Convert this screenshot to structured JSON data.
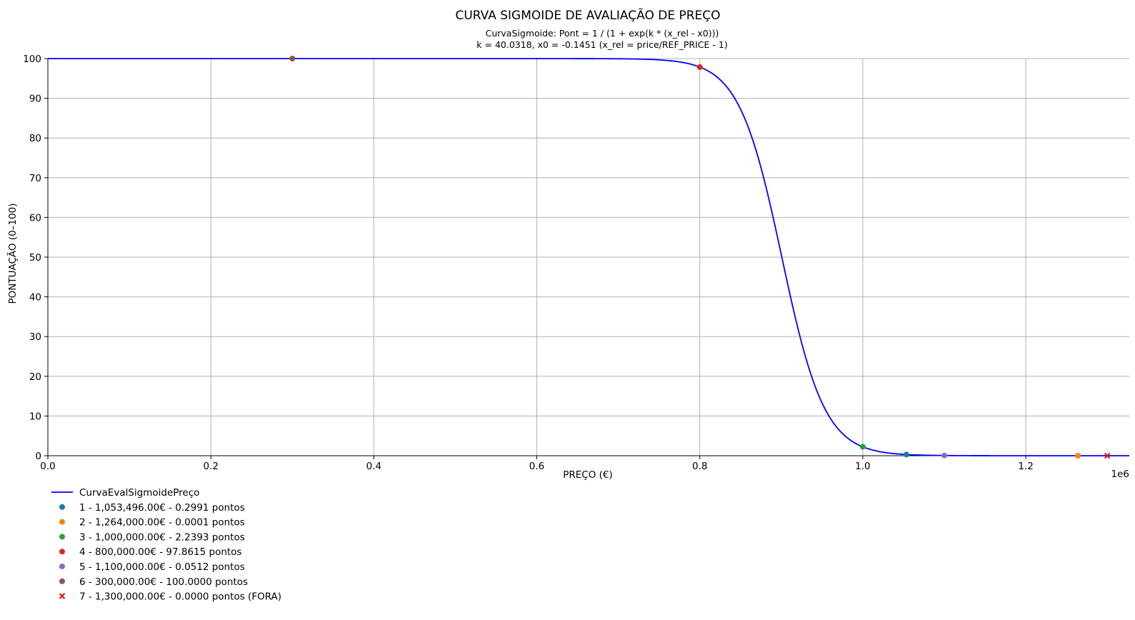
{
  "chart_data": {
    "type": "line",
    "title": "CURVA SIGMOIDE DE AVALIAÇÃO DE PREÇO",
    "subtitle_line1": "CurvaSigmoide: Pont = 1 / (1 + exp(k * (x_rel - x0)))",
    "subtitle_line2": "k = 40.0318, x0 = -0.1451 (x_rel = price/REF_PRICE - 1)",
    "xlabel": "PREÇO (€)",
    "ylabel": "PONTUAÇÃO (0–100)",
    "x_offset_label": "1e6",
    "xlim": [
      0,
      1327000
    ],
    "ylim": [
      0,
      100
    ],
    "x_ticks": [
      0,
      200000,
      400000,
      600000,
      800000,
      1000000,
      1200000
    ],
    "x_tick_labels": [
      "0.0",
      "0.2",
      "0.4",
      "0.6",
      "0.8",
      "1.0",
      "1.2"
    ],
    "y_ticks": [
      0,
      10,
      20,
      30,
      40,
      50,
      60,
      70,
      80,
      90,
      100
    ],
    "y_tick_labels": [
      "0",
      "10",
      "20",
      "30",
      "40",
      "50",
      "60",
      "70",
      "80",
      "90",
      "100"
    ],
    "grid": true,
    "legend_placement": "below-left",
    "curve": {
      "name": "CurvaEvalSigmoidePreço",
      "color": "#0000ff",
      "k": 40.0318,
      "x0": -0.1451,
      "ref_price": 1053496
    },
    "points": [
      {
        "label": "1 - 1,053,496.00€ - 0.2991 pontos",
        "x": 1053496,
        "y": 0.2991,
        "color": "#1f77b4",
        "marker": "circle"
      },
      {
        "label": "2 - 1,264,000.00€ - 0.0001 pontos",
        "x": 1264000,
        "y": 0.0001,
        "color": "#ff7f0e",
        "marker": "circle"
      },
      {
        "label": "3 - 1,000,000.00€ - 2.2393 pontos",
        "x": 1000000,
        "y": 2.2393,
        "color": "#2ca02c",
        "marker": "circle"
      },
      {
        "label": "4 - 800,000.00€ - 97.8615 pontos",
        "x": 800000,
        "y": 97.8615,
        "color": "#d62728",
        "marker": "circle"
      },
      {
        "label": "5 - 1,100,000.00€ - 0.0512 pontos",
        "x": 1100000,
        "y": 0.0512,
        "color": "#9467bd",
        "marker": "circle"
      },
      {
        "label": "6 - 300,000.00€ - 100.0000 pontos",
        "x": 300000,
        "y": 100.0,
        "color": "#8c564b",
        "marker": "circle"
      },
      {
        "label": "7 - 1,300,000.00€ - 0.0000 pontos (FORA)",
        "x": 1300000,
        "y": 0.0,
        "color": "#ff0000",
        "marker": "x"
      }
    ]
  }
}
